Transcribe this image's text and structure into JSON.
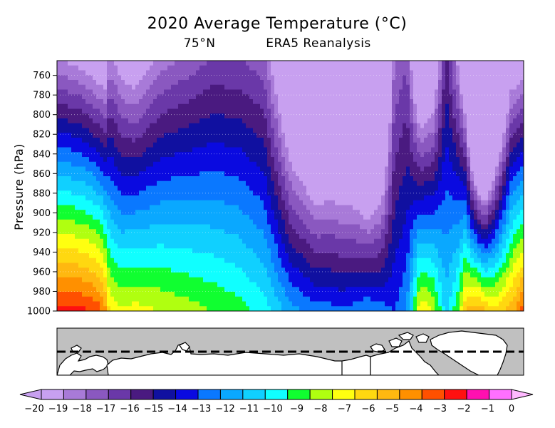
{
  "chart_data": {
    "type": "heatmap",
    "title": "2020 Average Temperature (°C)",
    "subtitle_left": "75°N",
    "subtitle_right": "ERA5 Reanalysis",
    "ylabel": "Pressure (hPa)",
    "xlabel": "",
    "y_ticks": [
      760,
      780,
      800,
      820,
      840,
      860,
      880,
      900,
      920,
      940,
      960,
      980,
      1000
    ],
    "ylim": [
      1000,
      745
    ],
    "x_extent": "longitude 0°–360°",
    "grid": "dotted horizontal lines",
    "colorbar": {
      "placement": "bottom",
      "levels": [
        -20,
        -19,
        -18,
        -17,
        -16,
        -15,
        -14,
        -13,
        -12,
        -11,
        -10,
        -9,
        -8,
        -7,
        -6,
        -5,
        -4,
        -3,
        -2,
        -1,
        0
      ],
      "tick_labels": [
        "−20",
        "−19",
        "−18",
        "−17",
        "−16",
        "−15",
        "−14",
        "−13",
        "−12",
        "−11",
        "−10",
        "−9",
        "−8",
        "−7",
        "−6",
        "−5",
        "−4",
        "−3",
        "−2",
        "−1",
        "0"
      ],
      "colors": [
        "#c8a0f0",
        "#a87ad8",
        "#8a58c0",
        "#6a38a8",
        "#4a1a80",
        "#1010a0",
        "#0a0ae0",
        "#0a78ff",
        "#0aa8ff",
        "#10d0ff",
        "#10ffff",
        "#10ff30",
        "#b0ff10",
        "#ffff10",
        "#ffd810",
        "#ffb810",
        "#ff9000",
        "#ff5000",
        "#ff1010",
        "#ff10b0",
        "#ff70ff"
      ],
      "extend_low_color": "#c8a0f0",
      "extend_high_color": "#ffb8ff"
    },
    "profile_lon": [
      0,
      20,
      30,
      35,
      38,
      40,
      45,
      50,
      60,
      80,
      100,
      120,
      140,
      160,
      170,
      180,
      190,
      200,
      210,
      220,
      230,
      240,
      250,
      260,
      270,
      280,
      290,
      300,
      310,
      315,
      320,
      325,
      330,
      340,
      350,
      360
    ],
    "profile_t1000": [
      -1.5,
      -1.8,
      -2.2,
      -3.0,
      -3.8,
      -6.0,
      -6.5,
      -6.8,
      -6.5,
      -7.0,
      -7.5,
      -8.0,
      -8.5,
      -9.5,
      -10.5,
      -11.5,
      -12.0,
      -12.5,
      -12.5,
      -12.8,
      -12.5,
      -12.0,
      -12.5,
      -13.0,
      -12.0,
      -6.0,
      -7.0,
      -10.5,
      -8.0,
      -5.0,
      -4.5,
      -4.0,
      -5.0,
      -5.5,
      -4.5,
      -2.5
    ],
    "profile_lapse": [
      0.068,
      0.07,
      0.072,
      0.07,
      0.068,
      0.05,
      0.05,
      0.052,
      0.055,
      0.045,
      0.04,
      0.035,
      0.033,
      0.032,
      0.04,
      0.05,
      0.055,
      0.06,
      0.058,
      0.058,
      0.062,
      0.075,
      0.06,
      0.02,
      0.02,
      0.07,
      0.06,
      0.02,
      0.045,
      0.07,
      0.1,
      0.125,
      0.125,
      0.09,
      0.065,
      0.07
    ]
  },
  "map_panel": {
    "latitude_line": "75°N"
  },
  "colors": {
    "land": "#ffffff",
    "ocean": "#c0c0c0",
    "frame": "#000000"
  }
}
